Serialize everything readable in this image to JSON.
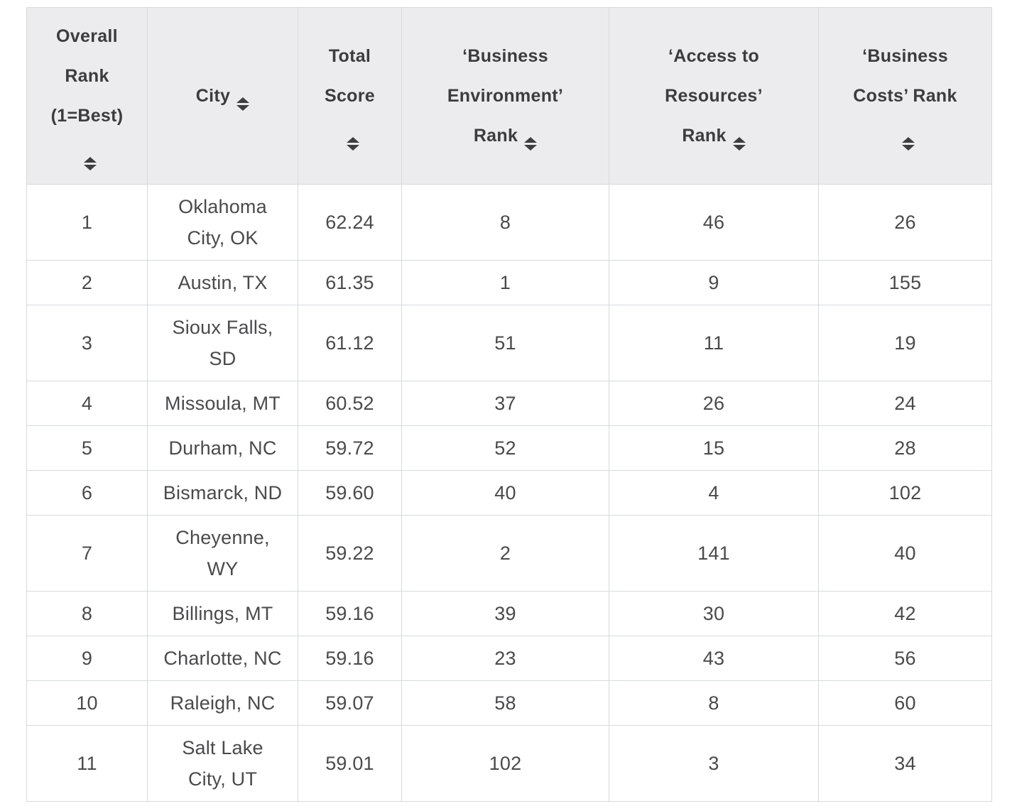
{
  "colors": {
    "header_background": "#ececee",
    "cell_border": "#d6dadb",
    "header_text": "#3c3c3d",
    "body_text": "#4a4a4c",
    "page_background": "#ffffff"
  },
  "icons": {
    "sort": "sort-up-down-icon"
  },
  "table": {
    "columns": [
      {
        "key": "overall_rank",
        "label": "Overall\nRank\n(1=Best)\n",
        "sortable": true
      },
      {
        "key": "city",
        "label": "City",
        "sortable": true
      },
      {
        "key": "total_score",
        "label": "Total\nScore\n",
        "sortable": true
      },
      {
        "key": "business_environment_rank",
        "label": "‘Business\nEnvironment’\nRank",
        "sortable": true
      },
      {
        "key": "access_to_resources_rank",
        "label": "‘Access to\nResources’\nRank",
        "sortable": true
      },
      {
        "key": "business_costs_rank",
        "label": "‘Business\nCosts’ Rank\n",
        "sortable": true
      }
    ],
    "rows": [
      {
        "overall_rank": "1",
        "city": "Oklahoma\nCity, OK",
        "total_score": "62.24",
        "business_environment_rank": "8",
        "access_to_resources_rank": "46",
        "business_costs_rank": "26"
      },
      {
        "overall_rank": "2",
        "city": "Austin, TX",
        "total_score": "61.35",
        "business_environment_rank": "1",
        "access_to_resources_rank": "9",
        "business_costs_rank": "155"
      },
      {
        "overall_rank": "3",
        "city": "Sioux Falls,\nSD",
        "total_score": "61.12",
        "business_environment_rank": "51",
        "access_to_resources_rank": "11",
        "business_costs_rank": "19"
      },
      {
        "overall_rank": "4",
        "city": "Missoula, MT",
        "total_score": "60.52",
        "business_environment_rank": "37",
        "access_to_resources_rank": "26",
        "business_costs_rank": "24"
      },
      {
        "overall_rank": "5",
        "city": "Durham, NC",
        "total_score": "59.72",
        "business_environment_rank": "52",
        "access_to_resources_rank": "15",
        "business_costs_rank": "28"
      },
      {
        "overall_rank": "6",
        "city": "Bismarck, ND",
        "total_score": "59.60",
        "business_environment_rank": "40",
        "access_to_resources_rank": "4",
        "business_costs_rank": "102"
      },
      {
        "overall_rank": "7",
        "city": "Cheyenne,\nWY",
        "total_score": "59.22",
        "business_environment_rank": "2",
        "access_to_resources_rank": "141",
        "business_costs_rank": "40"
      },
      {
        "overall_rank": "8",
        "city": "Billings, MT",
        "total_score": "59.16",
        "business_environment_rank": "39",
        "access_to_resources_rank": "30",
        "business_costs_rank": "42"
      },
      {
        "overall_rank": "9",
        "city": "Charlotte, NC",
        "total_score": "59.16",
        "business_environment_rank": "23",
        "access_to_resources_rank": "43",
        "business_costs_rank": "56"
      },
      {
        "overall_rank": "10",
        "city": "Raleigh, NC",
        "total_score": "59.07",
        "business_environment_rank": "58",
        "access_to_resources_rank": "8",
        "business_costs_rank": "60"
      },
      {
        "overall_rank": "11",
        "city": "Salt Lake\nCity, UT",
        "total_score": "59.01",
        "business_environment_rank": "102",
        "access_to_resources_rank": "3",
        "business_costs_rank": "34"
      }
    ]
  }
}
